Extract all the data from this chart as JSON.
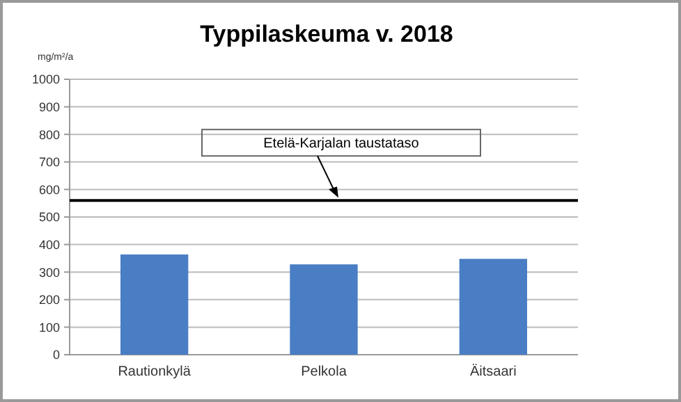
{
  "chart_data": {
    "type": "bar",
    "title": "Typpilaskeuma v. 2018",
    "ylabel": "mg/m²/a",
    "categories": [
      "Rautionkylä",
      "Pelkola",
      "Äitsaari"
    ],
    "values": [
      364,
      328,
      348
    ],
    "color": "#4a7ec4",
    "ylim": [
      0,
      1000
    ],
    "yticks": [
      0,
      100,
      200,
      300,
      400,
      500,
      600,
      700,
      800,
      900,
      1000
    ],
    "grid": "y",
    "ref_lines": [
      {
        "axis": "y",
        "value": 560,
        "label": "Etelä-Karjalan taustataso",
        "color": "#000000"
      }
    ]
  }
}
